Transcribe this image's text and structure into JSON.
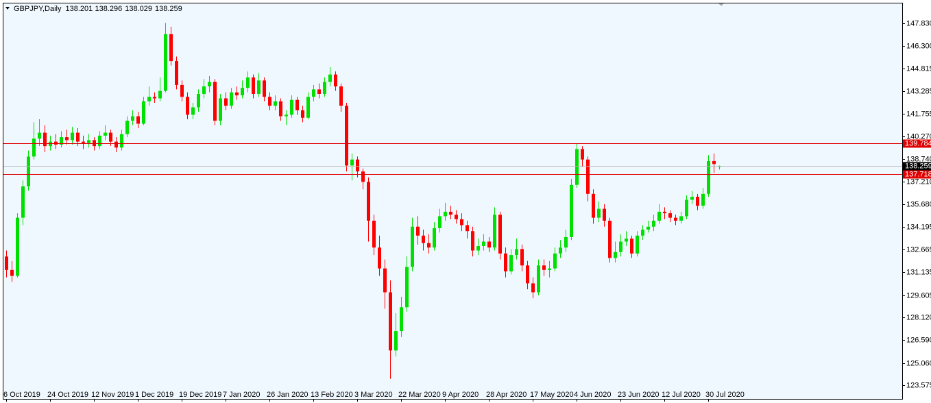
{
  "chart_data": {
    "type": "candlestick",
    "title": "GBPJPY,Daily",
    "up_color": "#00e000",
    "down_color": "#ff0000",
    "hlines": [
      {
        "value": 139.784,
        "color": "#e00000"
      },
      {
        "value": 137.718,
        "color": "#e00000"
      }
    ],
    "current_color": "#b8b8b8",
    "ylim": [
      122.748,
      149.162
    ],
    "yticks": [
      {
        "value": 147.83,
        "label": "147.830"
      },
      {
        "value": 146.3,
        "label": "146.300"
      },
      144.815,
      143.285,
      141.755,
      {
        "value": 140.27,
        "label": "140.270"
      },
      {
        "value": 138.74,
        "label": "138.740"
      },
      {
        "value": 137.21,
        "label": "137.210"
      },
      {
        "value": 135.68,
        "label": "135.680"
      },
      134.195,
      132.665,
      131.135,
      129.605,
      {
        "value": 128.12,
        "label": "128.120"
      },
      {
        "value": 126.59,
        "label": "126.590"
      },
      {
        "value": 125.06,
        "label": "125.060"
      },
      123.575
    ],
    "categories": [
      "6 Oct 2019",
      null,
      null,
      null,
      null,
      null,
      null,
      null,
      "24 Oct 2019",
      null,
      null,
      null,
      null,
      null,
      null,
      null,
      "12 Nov 2019",
      null,
      null,
      null,
      null,
      null,
      null,
      null,
      "1 Dec 2019",
      null,
      null,
      null,
      null,
      null,
      null,
      null,
      "19 Dec 2019",
      null,
      null,
      null,
      null,
      null,
      null,
      null,
      "7 Jan 2020",
      null,
      null,
      null,
      null,
      null,
      null,
      null,
      "26 Jan 2020",
      null,
      null,
      null,
      null,
      null,
      null,
      null,
      "13 Feb 2020",
      null,
      null,
      null,
      null,
      null,
      null,
      null,
      "3 Mar 2020",
      null,
      null,
      null,
      null,
      null,
      null,
      null,
      "22 Mar 2020",
      null,
      null,
      null,
      null,
      null,
      null,
      null,
      "9 Apr 2020",
      null,
      null,
      null,
      null,
      null,
      null,
      null,
      "28 Apr 2020",
      null,
      null,
      null,
      null,
      null,
      null,
      null,
      "17 May 2020",
      null,
      null,
      null,
      null,
      null,
      null,
      null,
      "4 Jun 2020",
      null,
      null,
      null,
      null,
      null,
      null,
      null,
      "23 Jun 2020",
      null,
      null,
      null,
      null,
      null,
      null,
      null,
      "12 Jul 2020",
      null,
      null,
      null,
      null,
      null,
      null,
      null,
      "30 Jul 2020",
      null,
      null
    ],
    "ohlc": [
      [
        132.2,
        132.6,
        130.8,
        131.3
      ],
      [
        131.3,
        131.9,
        130.5,
        130.9
      ],
      [
        130.9,
        135.1,
        130.8,
        134.8
      ],
      [
        134.8,
        137.3,
        134.3,
        136.9
      ],
      [
        136.9,
        139.3,
        136.6,
        138.9
      ],
      [
        138.9,
        141.2,
        138.7,
        140.1
      ],
      [
        140.1,
        141.4,
        139.6,
        140.5
      ],
      [
        140.5,
        141.0,
        139.2,
        139.6
      ],
      [
        139.6,
        140.3,
        139.3,
        139.9
      ],
      [
        139.9,
        140.4,
        139.4,
        139.7
      ],
      [
        139.7,
        140.6,
        139.5,
        140.2
      ],
      [
        140.2,
        140.7,
        139.7,
        140.0
      ],
      [
        140.0,
        140.9,
        139.7,
        140.5
      ],
      [
        140.5,
        140.8,
        139.6,
        139.9
      ],
      [
        139.9,
        140.3,
        139.4,
        139.8
      ],
      [
        139.8,
        140.4,
        139.5,
        140.0
      ],
      [
        140.0,
        140.2,
        139.3,
        139.6
      ],
      [
        139.6,
        140.6,
        139.4,
        140.3
      ],
      [
        140.3,
        141.0,
        140.0,
        140.5
      ],
      [
        140.5,
        140.7,
        139.6,
        139.9
      ],
      [
        139.9,
        140.2,
        139.2,
        139.5
      ],
      [
        139.5,
        140.7,
        139.3,
        140.4
      ],
      [
        140.4,
        141.6,
        140.2,
        141.3
      ],
      [
        141.3,
        142.0,
        141.0,
        141.6
      ],
      [
        141.6,
        141.9,
        140.8,
        141.1
      ],
      [
        141.1,
        142.9,
        141.0,
        142.6
      ],
      [
        142.6,
        143.6,
        142.3,
        142.9
      ],
      [
        142.9,
        143.2,
        142.5,
        142.8
      ],
      [
        142.8,
        144.2,
        142.6,
        143.3
      ],
      [
        143.3,
        147.85,
        143.2,
        147.1
      ],
      [
        147.1,
        147.6,
        145.0,
        145.3
      ],
      [
        145.3,
        145.6,
        143.4,
        143.7
      ],
      [
        143.7,
        144.0,
        142.6,
        142.9
      ],
      [
        142.9,
        143.2,
        141.4,
        141.7
      ],
      [
        141.7,
        142.5,
        141.4,
        142.2
      ],
      [
        142.2,
        143.4,
        141.9,
        143.1
      ],
      [
        143.1,
        144.1,
        142.8,
        143.6
      ],
      [
        143.6,
        144.3,
        143.2,
        143.9
      ],
      [
        143.9,
        144.1,
        141.0,
        141.3
      ],
      [
        141.3,
        143.1,
        141.0,
        142.8
      ],
      [
        142.8,
        143.2,
        142.0,
        142.3
      ],
      [
        142.3,
        143.5,
        142.1,
        143.2
      ],
      [
        143.2,
        143.6,
        142.7,
        143.0
      ],
      [
        143.0,
        144.0,
        142.8,
        143.5
      ],
      [
        143.5,
        144.6,
        143.2,
        144.2
      ],
      [
        144.2,
        144.4,
        142.8,
        143.1
      ],
      [
        143.1,
        144.5,
        142.9,
        144.0
      ],
      [
        144.0,
        144.2,
        142.6,
        142.9
      ],
      [
        142.9,
        143.2,
        142.0,
        142.3
      ],
      [
        142.3,
        143.0,
        142.0,
        142.6
      ],
      [
        142.6,
        142.8,
        141.3,
        141.6
      ],
      [
        141.6,
        142.0,
        141.0,
        141.7
      ],
      [
        141.7,
        143.0,
        141.5,
        142.7
      ],
      [
        142.7,
        142.9,
        141.7,
        142.0
      ],
      [
        142.0,
        142.3,
        141.2,
        141.5
      ],
      [
        141.5,
        143.2,
        141.4,
        142.9
      ],
      [
        142.9,
        143.7,
        142.6,
        143.4
      ],
      [
        143.4,
        143.8,
        142.8,
        143.1
      ],
      [
        143.1,
        144.2,
        142.9,
        143.9
      ],
      [
        143.9,
        144.9,
        143.6,
        144.4
      ],
      [
        144.4,
        144.6,
        143.3,
        143.6
      ],
      [
        143.6,
        143.8,
        141.9,
        142.3
      ],
      [
        142.3,
        142.5,
        137.9,
        138.3
      ],
      [
        138.3,
        139.1,
        137.3,
        138.7
      ],
      [
        138.7,
        138.9,
        137.5,
        137.9
      ],
      [
        137.9,
        138.1,
        136.7,
        137.2
      ],
      [
        137.2,
        137.5,
        133.2,
        134.6
      ],
      [
        134.6,
        135.0,
        132.3,
        132.8
      ],
      [
        132.8,
        133.6,
        130.9,
        131.4
      ],
      [
        131.4,
        132.0,
        128.7,
        129.8
      ],
      [
        129.8,
        130.6,
        124.0,
        125.9
      ],
      [
        125.9,
        128.4,
        125.5,
        127.2
      ],
      [
        127.2,
        129.5,
        126.8,
        128.8
      ],
      [
        128.8,
        132.2,
        128.5,
        131.5
      ],
      [
        131.5,
        134.8,
        131.2,
        134.2
      ],
      [
        134.2,
        134.9,
        133.0,
        133.6
      ],
      [
        133.6,
        134.0,
        132.6,
        133.1
      ],
      [
        133.1,
        133.7,
        132.4,
        132.8
      ],
      [
        132.8,
        134.5,
        132.6,
        134.1
      ],
      [
        134.1,
        135.4,
        133.8,
        134.9
      ],
      [
        134.9,
        135.8,
        134.6,
        135.2
      ],
      [
        135.2,
        135.6,
        134.7,
        135.0
      ],
      [
        135.0,
        135.3,
        134.4,
        134.7
      ],
      [
        134.7,
        135.1,
        133.9,
        134.3
      ],
      [
        134.3,
        134.6,
        133.4,
        133.9
      ],
      [
        133.9,
        134.2,
        132.2,
        132.6
      ],
      [
        132.6,
        133.4,
        132.3,
        132.9
      ],
      [
        132.9,
        133.7,
        132.6,
        133.2
      ],
      [
        133.2,
        133.5,
        132.5,
        132.8
      ],
      [
        132.8,
        135.5,
        132.6,
        135.0
      ],
      [
        135.0,
        135.2,
        132.0,
        132.4
      ],
      [
        132.4,
        132.8,
        130.8,
        131.2
      ],
      [
        131.2,
        132.7,
        131.0,
        132.3
      ],
      [
        132.3,
        133.4,
        132.0,
        132.7
      ],
      [
        132.7,
        133.0,
        131.2,
        131.6
      ],
      [
        131.6,
        131.9,
        130.0,
        130.4
      ],
      [
        130.4,
        130.8,
        129.4,
        129.8
      ],
      [
        129.8,
        132.0,
        129.6,
        131.6
      ],
      [
        131.6,
        132.0,
        130.9,
        131.3
      ],
      [
        131.3,
        131.9,
        130.8,
        131.4
      ],
      [
        131.4,
        132.8,
        131.2,
        132.4
      ],
      [
        132.4,
        133.3,
        132.1,
        132.8
      ],
      [
        132.8,
        134.0,
        132.5,
        133.5
      ],
      [
        133.5,
        137.4,
        133.3,
        137.0
      ],
      [
        137.0,
        139.75,
        136.8,
        139.4
      ],
      [
        139.4,
        139.6,
        138.2,
        138.7
      ],
      [
        138.7,
        138.9,
        135.9,
        136.4
      ],
      [
        136.4,
        136.7,
        134.4,
        134.8
      ],
      [
        134.8,
        135.9,
        134.5,
        135.4
      ],
      [
        135.4,
        135.7,
        134.2,
        134.6
      ],
      [
        134.6,
        134.8,
        131.8,
        132.1
      ],
      [
        132.1,
        133.2,
        131.8,
        132.5
      ],
      [
        132.5,
        133.7,
        132.2,
        133.2
      ],
      [
        133.2,
        133.9,
        132.9,
        133.4
      ],
      [
        133.4,
        133.6,
        132.1,
        132.4
      ],
      [
        132.4,
        133.9,
        132.2,
        133.6
      ],
      [
        133.6,
        134.3,
        133.3,
        134.0
      ],
      [
        134.0,
        134.6,
        133.8,
        134.2
      ],
      [
        134.2,
        135.0,
        133.9,
        134.6
      ],
      [
        134.6,
        135.7,
        134.4,
        135.2
      ],
      [
        135.2,
        135.5,
        134.7,
        135.1
      ],
      [
        135.1,
        135.3,
        134.5,
        134.8
      ],
      [
        134.8,
        135.0,
        134.3,
        134.6
      ],
      [
        134.6,
        135.2,
        134.4,
        134.9
      ],
      [
        134.9,
        136.3,
        134.7,
        136.0
      ],
      [
        136.0,
        136.6,
        135.7,
        136.2
      ],
      [
        136.2,
        136.4,
        135.3,
        135.6
      ],
      [
        135.6,
        136.8,
        135.4,
        136.4
      ],
      [
        136.4,
        139.0,
        136.2,
        138.6
      ],
      [
        138.6,
        139.1,
        137.8,
        138.4
      ],
      [
        138.201,
        138.296,
        138.029,
        138.259
      ]
    ]
  }
}
